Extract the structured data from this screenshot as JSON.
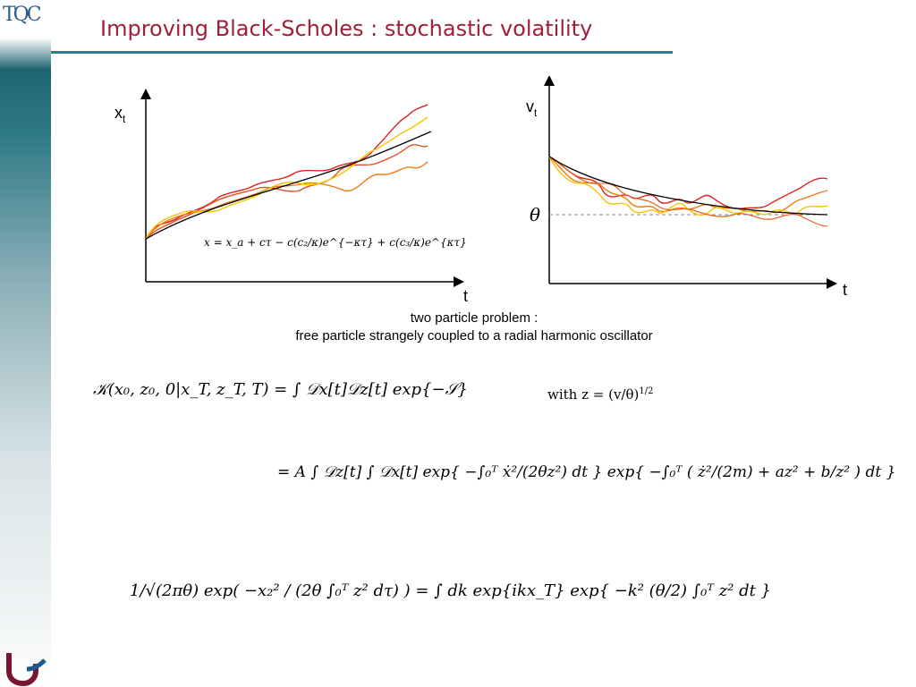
{
  "slide": {
    "title": "Improving Black-Scholes : stochastic volatility"
  },
  "logo": {
    "text": "TQC",
    "bottom_icon": "university-logo-icon"
  },
  "graph_left": {
    "y_label": "x",
    "y_sub": "t",
    "x_label": "t",
    "formula": "x = x_a + cτ − c(c₂/κ)e^{−κτ} + c(c₃/κ)e^{κτ}"
  },
  "graph_right": {
    "y_label": "v",
    "y_sub": "t",
    "x_label": "t",
    "theta_label": "θ"
  },
  "caption": {
    "line1": "two particle problem :",
    "line2": "free particle strangely coupled to a radial harmonic oscillator"
  },
  "equations": {
    "kernel_lhs": "𝒦(x₀, z₀, 0|x_T, z_T, T) = ∫ 𝒟x[t]𝒟z[t]  exp{−𝒮}",
    "with_text": "with z = (v/θ)",
    "with_exp": "1/2",
    "line2": "= A ∫ 𝒟z[t] ∫ 𝒟x[t]  exp{ −∫₀ᵀ ẋ²/(2θz²) dt }  exp{ −∫₀ᵀ ( ż²/(2m) + az² + b/z² ) dt }",
    "line3": "1/√(2πθ) exp( −x₂² / (2θ ∫₀ᵀ z² dτ) )   = ∫ dk exp{ikx_T} exp{ −k² (θ/2) ∫₀ᵀ z² dt }"
  },
  "colors": {
    "title": "#a0203a",
    "rule": "#2e7f8c",
    "red": "#e02020",
    "orange": "#f07a10",
    "yellow": "#f5c400"
  }
}
